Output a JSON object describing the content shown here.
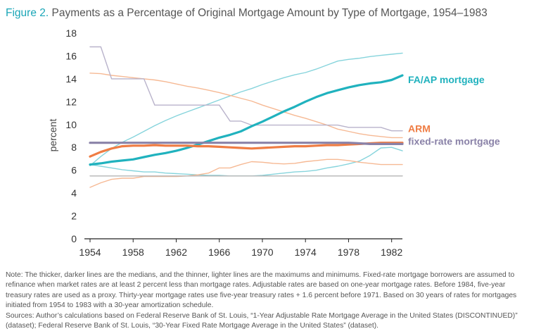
{
  "figure": {
    "label": "Figure 2.",
    "title": "Payments as a Percentage of Original Mortgage Amount by Type of Mortgage, 1954–1983"
  },
  "notes": {
    "note": "Note: The thicker, darker lines are the medians, and the thinner, lighter lines are the maximums and minimums. Fixed-rate mortgage borrowers are assumed to refinance when market rates are at least 2 percent less than mortgage rates. Adjustable rates are based on one-year mortgage rates. Before 1984, five-year treasury rates are used as a proxy. Thirty-year mortgage rates use five-year treasury rates + 1.6 percent before 1971. Based on 30 years of rates for mortgages initiated from 1954 to 1983 with a 30-year amortization schedule.",
    "sources": "Sources: Author’s calculations based on Federal Reserve Bank of St. Louis, “1-Year Adjustable Rate Mortgage Average in the United States (DISCONTINUED)” (dataset); Federal Reserve Bank of St. Louis, “30-Year Fixed Rate Mortgage Average in the United States” (dataset)."
  },
  "colors": {
    "teal": "#20b2be",
    "teal_light": "#86d4dc",
    "orange": "#ef7d44",
    "orange_light": "#f6b994",
    "purple": "#8a82a8",
    "purple_light": "#b9b3cb",
    "gray_light": "#b5b5b5",
    "accent": "#1aa6b7"
  },
  "chart_data": {
    "type": "line",
    "ylabel": "percent",
    "xlabel": "",
    "ylim": [
      0,
      18
    ],
    "xlim": [
      1954,
      1983
    ],
    "x_ticks": [
      1954,
      1958,
      1962,
      1966,
      1970,
      1974,
      1978,
      1982
    ],
    "y_ticks": [
      0,
      2,
      4,
      6,
      8,
      10,
      12,
      14,
      16,
      18
    ],
    "grid": false,
    "legend": "direct labels at right end of lines",
    "x": [
      1954,
      1955,
      1956,
      1957,
      1958,
      1959,
      1960,
      1961,
      1962,
      1963,
      1964,
      1965,
      1966,
      1967,
      1968,
      1969,
      1970,
      1971,
      1972,
      1973,
      1974,
      1975,
      1976,
      1977,
      1978,
      1979,
      1980,
      1981,
      1982,
      1983
    ],
    "series": [
      {
        "name": "FA/AP mortgage",
        "kind": "median",
        "color": "teal",
        "values": [
          6.5,
          6.6,
          6.75,
          6.85,
          6.95,
          7.15,
          7.35,
          7.5,
          7.7,
          7.95,
          8.25,
          8.55,
          8.85,
          9.1,
          9.4,
          9.85,
          10.25,
          10.7,
          11.15,
          11.55,
          12.0,
          12.4,
          12.75,
          13.0,
          13.25,
          13.45,
          13.6,
          13.7,
          13.9,
          14.3
        ]
      },
      {
        "name": "",
        "kind": "max",
        "color": "teal_light",
        "values": [
          6.4,
          7.2,
          7.9,
          8.45,
          8.9,
          9.4,
          9.9,
          10.35,
          10.75,
          11.1,
          11.45,
          11.8,
          12.15,
          12.5,
          12.85,
          13.15,
          13.5,
          13.8,
          14.1,
          14.35,
          14.55,
          14.85,
          15.2,
          15.55,
          15.7,
          15.8,
          15.95,
          16.05,
          16.15,
          16.25
        ]
      },
      {
        "name": "",
        "kind": "min",
        "color": "teal_light",
        "values": [
          6.5,
          6.35,
          6.2,
          6.05,
          5.95,
          5.85,
          5.85,
          5.75,
          5.7,
          5.65,
          5.6,
          5.55,
          5.55,
          5.5,
          5.5,
          5.5,
          5.55,
          5.65,
          5.75,
          5.85,
          5.9,
          6.0,
          6.2,
          6.35,
          6.55,
          6.8,
          7.3,
          7.95,
          8.0,
          7.7
        ]
      },
      {
        "name": "ARM",
        "kind": "median",
        "color": "orange",
        "values": [
          7.2,
          7.6,
          7.9,
          8.1,
          8.15,
          8.15,
          8.2,
          8.15,
          8.15,
          8.15,
          8.1,
          8.1,
          8.05,
          8.0,
          7.95,
          7.9,
          7.95,
          8.0,
          8.05,
          8.1,
          8.1,
          8.15,
          8.2,
          8.2,
          8.25,
          8.3,
          8.35,
          8.4,
          8.4,
          8.4
        ]
      },
      {
        "name": "",
        "kind": "max",
        "color": "orange_light",
        "values": [
          14.5,
          14.45,
          14.3,
          14.2,
          14.1,
          14.0,
          13.9,
          13.75,
          13.55,
          13.35,
          13.2,
          13.0,
          12.8,
          12.55,
          12.3,
          12.05,
          11.7,
          11.4,
          11.1,
          10.8,
          10.55,
          10.25,
          9.95,
          9.6,
          9.4,
          9.2,
          9.05,
          8.95,
          8.85,
          8.85
        ]
      },
      {
        "name": "",
        "kind": "min",
        "color": "orange_light",
        "values": [
          4.5,
          4.9,
          5.2,
          5.3,
          5.3,
          5.45,
          5.45,
          5.45,
          5.45,
          5.5,
          5.6,
          5.75,
          6.2,
          6.2,
          6.5,
          6.75,
          6.7,
          6.6,
          6.55,
          6.6,
          6.75,
          6.85,
          6.95,
          6.95,
          6.85,
          6.7,
          6.6,
          6.5,
          6.5,
          6.5
        ]
      },
      {
        "name": "fixed-rate mortgage",
        "kind": "median",
        "color": "purple",
        "values": [
          8.4,
          8.4,
          8.4,
          8.4,
          8.4,
          8.4,
          8.4,
          8.4,
          8.4,
          8.4,
          8.4,
          8.4,
          8.4,
          8.4,
          8.4,
          8.4,
          8.4,
          8.4,
          8.4,
          8.4,
          8.4,
          8.4,
          8.4,
          8.4,
          8.4,
          8.35,
          8.3,
          8.3,
          8.3,
          8.3
        ]
      },
      {
        "name": "",
        "kind": "max",
        "color": "purple_light",
        "values": [
          16.8,
          16.8,
          14.0,
          14.0,
          14.0,
          14.0,
          11.7,
          11.7,
          11.7,
          11.7,
          11.7,
          11.7,
          11.7,
          10.3,
          10.3,
          9.95,
          9.95,
          9.95,
          9.95,
          9.95,
          9.95,
          9.95,
          9.95,
          9.95,
          9.75,
          9.75,
          9.75,
          9.75,
          9.45,
          9.45
        ]
      },
      {
        "name": "",
        "kind": "min",
        "color": "gray_light",
        "values": [
          5.5,
          5.5,
          5.5,
          5.5,
          5.5,
          5.5,
          5.5,
          5.5,
          5.5,
          5.5,
          5.5,
          5.5,
          5.5,
          5.5,
          5.5,
          5.5,
          5.5,
          5.5,
          5.5,
          5.5,
          5.5,
          5.5,
          5.5,
          5.5,
          5.5,
          5.5,
          5.5,
          5.5,
          5.5,
          5.5
        ]
      }
    ]
  }
}
